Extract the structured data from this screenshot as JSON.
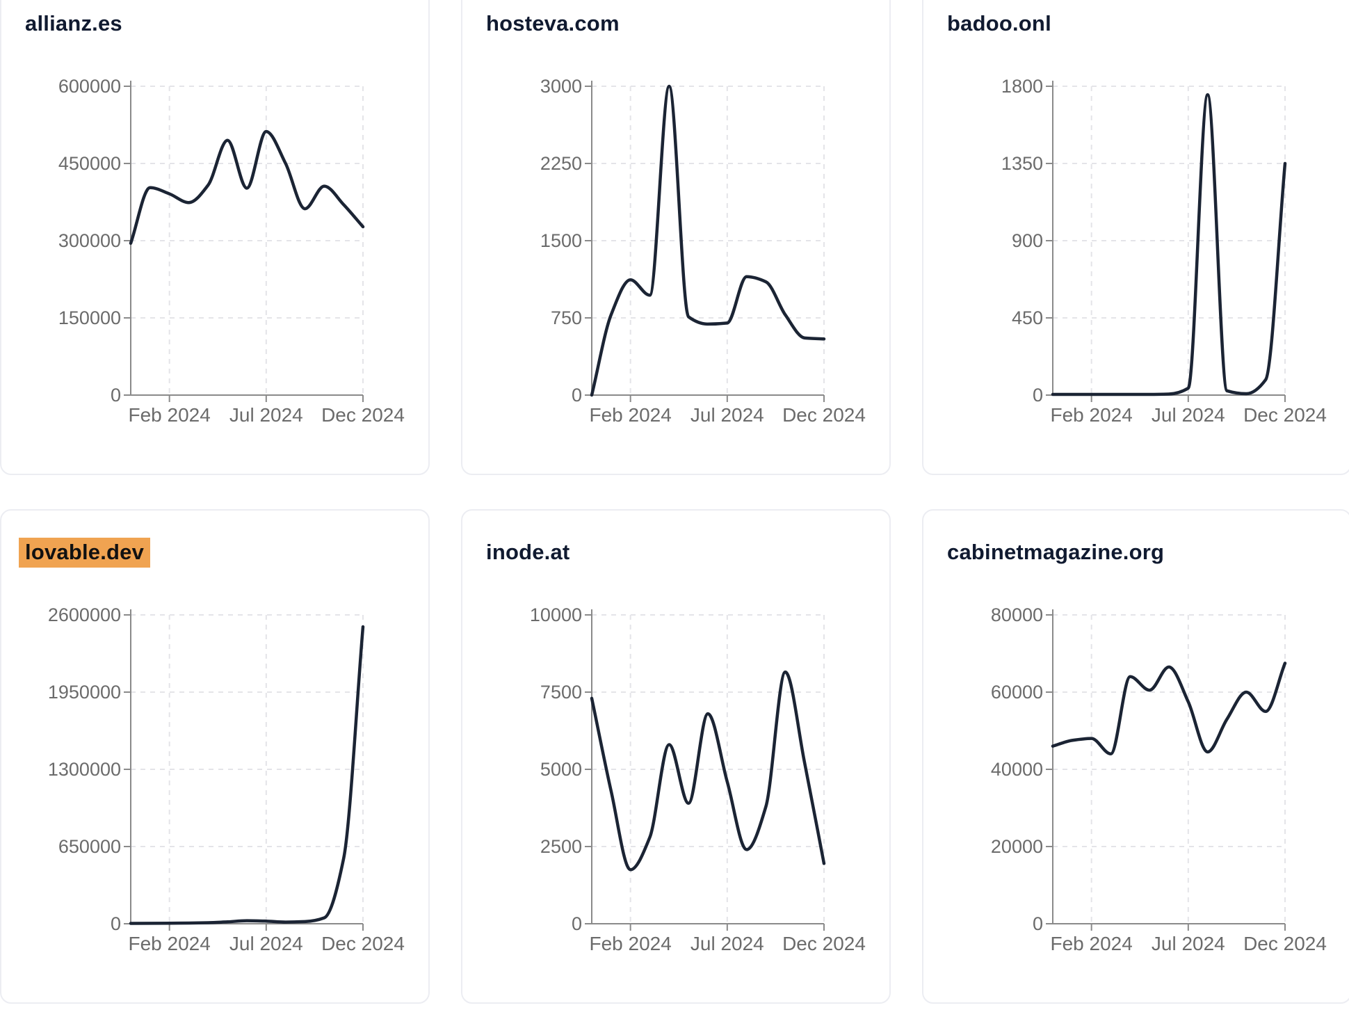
{
  "colors": {
    "background": "#ffffff",
    "card_border": "#ecedf2",
    "title_text": "#101a30",
    "highlight_bg": "#f0a351",
    "highlight_text": "#111111",
    "line": "#1b2434",
    "axis": "#8a8a8a",
    "tick_text": "#6b6b6b",
    "gridline": "#e4e4e8"
  },
  "x_tick_labels": [
    "Feb 2024",
    "Jul 2024",
    "Dec 2024"
  ],
  "chart_data": [
    {
      "type": "line",
      "title": "allianz.es",
      "highlighted": false,
      "ylim": [
        0,
        600000
      ],
      "y_ticks": [
        600000,
        450000,
        300000,
        150000,
        0
      ],
      "x_ticks": [
        "Feb 2024",
        "Jul 2024",
        "Dec 2024"
      ],
      "x": [
        "Dec 2023",
        "Jan 2024",
        "Feb 2024",
        "Mar 2024",
        "Apr 2024",
        "May 2024",
        "Jun 2024",
        "Jul 2024",
        "Aug 2024",
        "Sep 2024",
        "Oct 2024",
        "Nov 2024",
        "Dec 2024"
      ],
      "values": [
        295000,
        403000,
        391000,
        374000,
        408000,
        495000,
        402000,
        512000,
        450000,
        362000,
        406000,
        370000,
        327000
      ],
      "grid": true,
      "legend": false
    },
    {
      "type": "line",
      "title": "hosteva.com",
      "highlighted": false,
      "ylim": [
        0,
        3000
      ],
      "y_ticks": [
        3000,
        2250,
        1500,
        750,
        0
      ],
      "x_ticks": [
        "Feb 2024",
        "Jul 2024",
        "Dec 2024"
      ],
      "x": [
        "Dec 2023",
        "Jan 2024",
        "Feb 2024",
        "Mar 2024",
        "Apr 2024",
        "May 2024",
        "Jun 2024",
        "Jul 2024",
        "Aug 2024",
        "Sep 2024",
        "Oct 2024",
        "Nov 2024",
        "Dec 2024"
      ],
      "values": [
        0,
        780,
        1120,
        970,
        3000,
        760,
        690,
        700,
        1150,
        1100,
        780,
        555,
        545
      ],
      "grid": true,
      "legend": false
    },
    {
      "type": "line",
      "title": "badoo.onl",
      "highlighted": false,
      "ylim": [
        0,
        1800
      ],
      "y_ticks": [
        1800,
        1350,
        900,
        450,
        0
      ],
      "x_ticks": [
        "Feb 2024",
        "Jul 2024",
        "Dec 2024"
      ],
      "x": [
        "Dec 2023",
        "Jan 2024",
        "Feb 2024",
        "Mar 2024",
        "Apr 2024",
        "May 2024",
        "Jun 2024",
        "Jul 2024",
        "Aug 2024",
        "Sep 2024",
        "Oct 2024",
        "Nov 2024",
        "Dec 2024"
      ],
      "values": [
        4,
        4,
        4,
        4,
        4,
        4,
        6,
        40,
        1750,
        25,
        8,
        90,
        1350
      ],
      "grid": true,
      "legend": false
    },
    {
      "type": "line",
      "title": "lovable.dev",
      "highlighted": true,
      "ylim": [
        0,
        2600000
      ],
      "y_ticks": [
        2600000,
        1950000,
        1300000,
        650000,
        0
      ],
      "x_ticks": [
        "Feb 2024",
        "Jul 2024",
        "Dec 2024"
      ],
      "x": [
        "Dec 2023",
        "Jan 2024",
        "Feb 2024",
        "Mar 2024",
        "Apr 2024",
        "May 2024",
        "Jun 2024",
        "Jul 2024",
        "Aug 2024",
        "Sep 2024",
        "Oct 2024",
        "Nov 2024",
        "Dec 2024"
      ],
      "values": [
        3000,
        3500,
        4500,
        6000,
        9000,
        16000,
        26000,
        22000,
        14000,
        18000,
        50000,
        550000,
        2500000
      ],
      "grid": true,
      "legend": false
    },
    {
      "type": "line",
      "title": "inode.at",
      "highlighted": false,
      "ylim": [
        0,
        10000
      ],
      "y_ticks": [
        10000,
        7500,
        5000,
        2500,
        0
      ],
      "x_ticks": [
        "Feb 2024",
        "Jul 2024",
        "Dec 2024"
      ],
      "x": [
        "Dec 2023",
        "Jan 2024",
        "Feb 2024",
        "Mar 2024",
        "Apr 2024",
        "May 2024",
        "Jun 2024",
        "Jul 2024",
        "Aug 2024",
        "Sep 2024",
        "Oct 2024",
        "Nov 2024",
        "Dec 2024"
      ],
      "values": [
        7300,
        4300,
        1750,
        2800,
        5800,
        3900,
        6800,
        4600,
        2400,
        3800,
        8150,
        5200,
        1950
      ],
      "grid": true,
      "legend": false
    },
    {
      "type": "line",
      "title": "cabinetmagazine.org",
      "highlighted": false,
      "ylim": [
        0,
        80000
      ],
      "y_ticks": [
        80000,
        60000,
        40000,
        20000,
        0
      ],
      "x_ticks": [
        "Feb 2024",
        "Jul 2024",
        "Dec 2024"
      ],
      "x": [
        "Dec 2023",
        "Jan 2024",
        "Feb 2024",
        "Mar 2024",
        "Apr 2024",
        "May 2024",
        "Jun 2024",
        "Jul 2024",
        "Aug 2024",
        "Sep 2024",
        "Oct 2024",
        "Nov 2024",
        "Dec 2024"
      ],
      "values": [
        46000,
        47500,
        48000,
        44000,
        64000,
        60500,
        66500,
        57500,
        44500,
        53000,
        60000,
        55000,
        67500
      ],
      "grid": true,
      "legend": false
    }
  ]
}
